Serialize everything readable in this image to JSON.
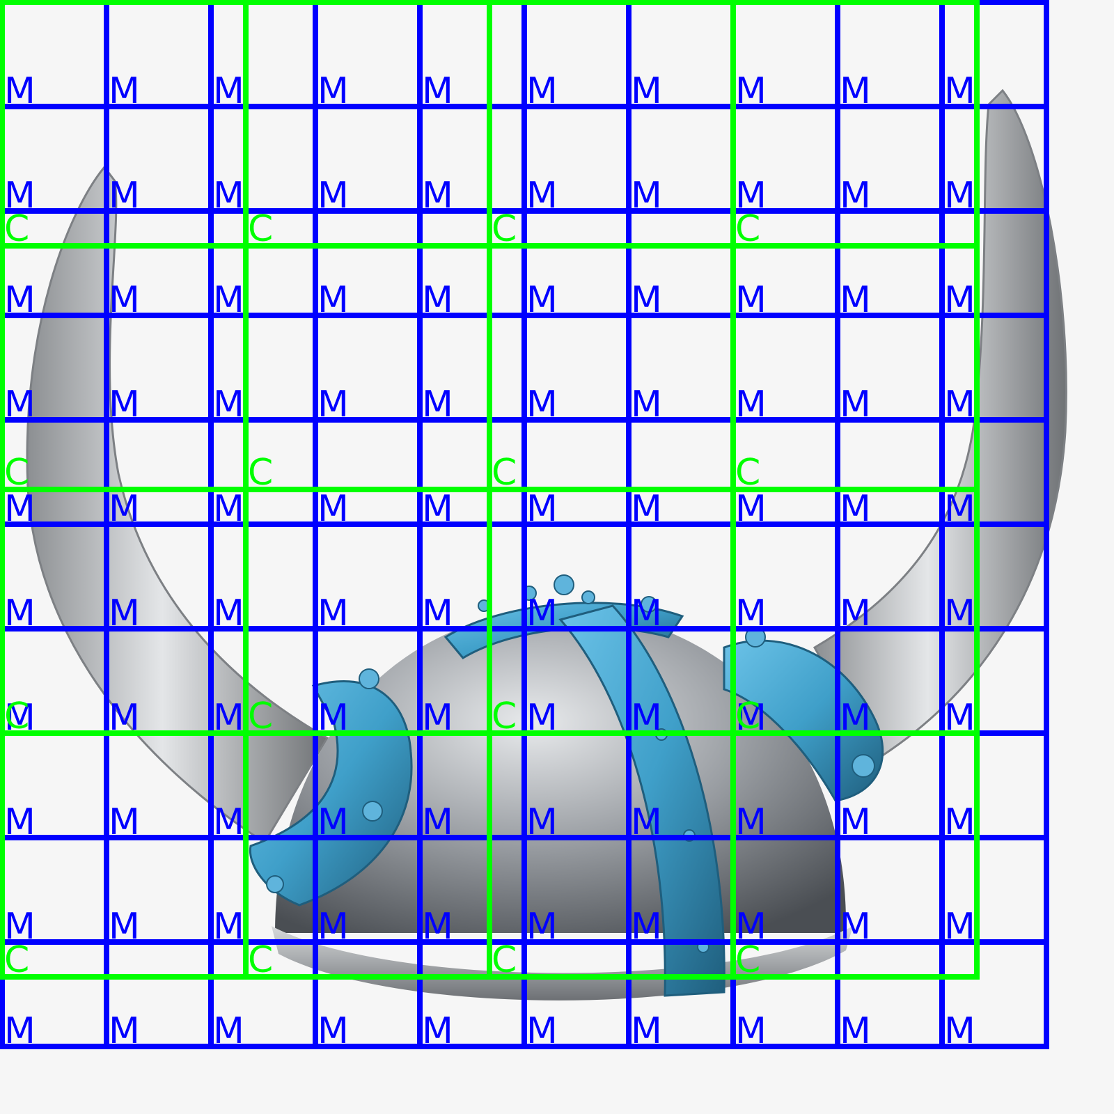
{
  "image": {
    "subject": "viking-helmet-with-horns",
    "colors": {
      "background": "#f6f6f6",
      "metal_blue": "#3f9fc9",
      "metal_blue_dark": "#1f5e7d",
      "dome_silver": "#9a9ea3",
      "horn": "#c9cbcd"
    }
  },
  "overlay": {
    "medium_boxes": {
      "label": "M",
      "color": "#0000ff"
    },
    "coarse_boxes": {
      "label": "C",
      "color": "#00ff00"
    }
  }
}
